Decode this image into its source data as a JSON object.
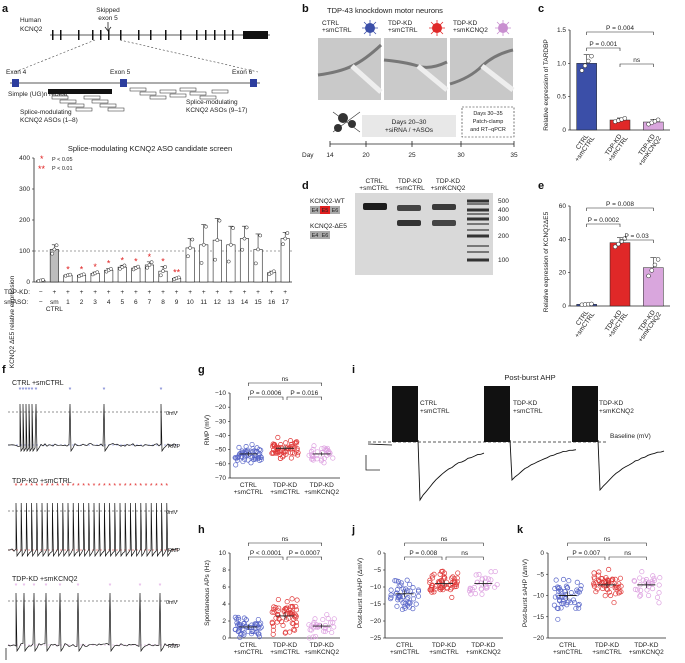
{
  "figure": {
    "panels": {
      "a": {
        "label": "a",
        "gene_label": "Human",
        "gene_name": "KCNQ2",
        "skipped_label": "Skipped",
        "skipped_exon": "exon 5",
        "exon4": "Exon 4",
        "exon5": "Exon 5",
        "exon6": "Exon 6",
        "ug_repeat": "Simple (UG)n repeat",
        "aso_left_1": "Splice-modulating",
        "aso_left_2": "KCNQ2 ASOs (1–8)",
        "aso_right_1": "Splice-modulating",
        "aso_right_2": "KCNQ2 ASOs (9–17)",
        "chart_title": "Splice-modulating KCNQ2 ASO candidate screen",
        "legend_p05": "P < 0.05",
        "legend_p01": "P < 0.01",
        "tdp_kd_label": "TDP-KD:",
        "smaso_label": "smASO:"
      },
      "b": {
        "label": "b",
        "title": "TDP-43 knockdown motor neurons",
        "cond1_l1": "CTRL",
        "cond1_l2": "+smCTRL",
        "cond2_l1": "TDP-KD",
        "cond2_l2": "+smCTRL",
        "cond3_l1": "TDP-KD",
        "cond3_l2": "+smKCNQ2",
        "timeline_box": "Days 20–30",
        "timeline_box2": "+siRNA / +ASOs",
        "end_box1": "Days 30–35",
        "end_box2": "Patch-clamp",
        "end_box3": "and RT–qPCR",
        "day_label": "Day",
        "days": [
          "14",
          "20",
          "25",
          "30",
          "35"
        ]
      },
      "c": {
        "label": "c"
      },
      "d": {
        "label": "d",
        "lane1_l1": "CTRL",
        "lane1_l2": "+smCTRL",
        "lane2_l1": "TDP-KD",
        "lane2_l2": "+smCTRL",
        "lane3_l1": "TDP-KD",
        "lane3_l2": "+smKCNQ2",
        "wt_label": "KCNQ2-WT",
        "de5_label": "KCNQ2-ΔE5",
        "e4": "E4",
        "e5": "E5",
        "e6": "E6",
        "ladder": [
          "500",
          "400",
          "300",
          "200",
          "100"
        ]
      },
      "e": {
        "label": "e"
      },
      "f": {
        "label": "f",
        "trace1": "CTRL +smCTRL",
        "trace2": "TDP-KD +smCTRL",
        "trace3": "TDP-KD +smKCNQ2",
        "zero_mv": "0mV",
        "rmp": "RMP"
      },
      "g": {
        "label": "g"
      },
      "h": {
        "label": "h"
      },
      "i": {
        "label": "i",
        "title": "Post-burst AHP",
        "c1_l1": "CTRL",
        "c1_l2": "+smCTRL",
        "c2_l1": "TDP-KD",
        "c2_l2": "+smCTRL",
        "c3_l1": "TDP-KD",
        "c3_l2": "+smKCNQ2",
        "baseline": "Baseline (mV)"
      },
      "j": {
        "label": "j"
      },
      "k": {
        "label": "k"
      }
    }
  },
  "chart_data": [
    {
      "id": "a",
      "type": "bar",
      "title": "Splice-modulating KCNQ2 ASO candidate screen",
      "ylabel": "KCNQ2 ΔE5 relative expression",
      "ylim": [
        0,
        400
      ],
      "yticks": [
        "0",
        "100",
        "200",
        "300",
        "400"
      ],
      "reference_line": 100,
      "categories": [
        "−",
        "sm CTRL",
        "1",
        "2",
        "3",
        "4",
        "5",
        "6",
        "7",
        "8",
        "9",
        "10",
        "11",
        "12",
        "13",
        "14",
        "15",
        "16",
        "17"
      ],
      "tdp_kd": [
        "−",
        "+",
        "+",
        "+",
        "+",
        "+",
        "+",
        "+",
        "+",
        "+",
        "+",
        "+",
        "+",
        "+",
        "+",
        "+",
        "+",
        "+",
        "+"
      ],
      "values": [
        5,
        105,
        22,
        22,
        28,
        38,
        48,
        45,
        55,
        35,
        12,
        110,
        120,
        135,
        120,
        140,
        105,
        30,
        140
      ],
      "errors": [
        2,
        15,
        2,
        3,
        4,
        5,
        6,
        5,
        10,
        15,
        3,
        30,
        65,
        70,
        60,
        40,
        50,
        5,
        20
      ],
      "significance": [
        "",
        "",
        "*",
        "*",
        "*",
        "*",
        "*",
        "*",
        "*",
        "*",
        "**",
        "",
        "",
        "",
        "",
        "",
        "",
        "",
        ""
      ]
    },
    {
      "id": "c",
      "type": "bar",
      "ylabel": "Relative expression of TARDBP",
      "ylim": [
        0,
        1.5
      ],
      "yticks": [
        "0",
        "0.5",
        "1.0",
        "1.5"
      ],
      "categories": [
        "CTRL +smCTRL",
        "TDP-KD +smCTRL",
        "TDP-KD +smKCNQ2"
      ],
      "values": [
        1.0,
        0.15,
        0.12
      ],
      "errors": [
        0.13,
        0.03,
        0.04
      ],
      "colors": [
        "#3b4fa8",
        "#e02828",
        "#d9a6dd"
      ],
      "brackets": [
        {
          "from": 0,
          "to": 2,
          "label": "P = 0.004"
        },
        {
          "from": 0,
          "to": 1,
          "label": "P = 0.001"
        },
        {
          "from": 1,
          "to": 2,
          "label": "ns"
        }
      ]
    },
    {
      "id": "e",
      "type": "bar",
      "ylabel": "Relative expression of KCNQ2ΔE5",
      "ylim": [
        0,
        60
      ],
      "yticks": [
        "0",
        "20",
        "40",
        "60"
      ],
      "categories": [
        "CTRL +smCTRL",
        "TDP-KD +smCTRL",
        "TDP-KD +smKCNQ2"
      ],
      "values": [
        1,
        38,
        23
      ],
      "errors": [
        0.3,
        3,
        6
      ],
      "colors": [
        "#3b4fa8",
        "#e02828",
        "#d9a6dd"
      ],
      "brackets": [
        {
          "from": 0,
          "to": 2,
          "label": "P = 0.008"
        },
        {
          "from": 0,
          "to": 1,
          "label": "P = 0.0002"
        },
        {
          "from": 1,
          "to": 2,
          "label": "P = 0.03"
        }
      ]
    },
    {
      "id": "g",
      "type": "scatter",
      "ylabel": "RMP (mV)",
      "ylim": [
        -70,
        -10
      ],
      "yticks": [
        "−10",
        "−20",
        "−30",
        "−40",
        "−50",
        "−60",
        "−70"
      ],
      "categories": [
        "CTRL +smCTRL",
        "TDP-KD +smCTRL",
        "TDP-KD +smKCNQ2"
      ],
      "means": [
        -53,
        -49,
        -53
      ],
      "spread": [
        6,
        6,
        5
      ],
      "n": [
        55,
        60,
        30
      ],
      "colors": [
        "#5865c8",
        "#e03838",
        "#dda0e0"
      ],
      "brackets": [
        {
          "from": 0,
          "to": 2,
          "label": "ns"
        },
        {
          "from": 0,
          "to": 1,
          "label": "P = 0.0006"
        },
        {
          "from": 1,
          "to": 2,
          "label": "P = 0.016"
        }
      ]
    },
    {
      "id": "h",
      "type": "scatter",
      "ylabel": "Spontaneous APs (Hz)",
      "ylim": [
        0,
        10
      ],
      "yticks": [
        "0",
        "2",
        "4",
        "6",
        "8",
        "10"
      ],
      "categories": [
        "CTRL +smCTRL",
        "TDP-KD +smCTRL",
        "TDP-KD +smKCNQ2"
      ],
      "means": [
        1.3,
        2.6,
        1.4
      ],
      "spread": [
        1.2,
        1.8,
        1.1
      ],
      "n": [
        55,
        60,
        30
      ],
      "colors": [
        "#5865c8",
        "#e03838",
        "#dda0e0"
      ],
      "brackets": [
        {
          "from": 0,
          "to": 2,
          "label": "ns"
        },
        {
          "from": 0,
          "to": 1,
          "label": "P < 0.0001"
        },
        {
          "from": 1,
          "to": 2,
          "label": "P = 0.0007"
        }
      ]
    },
    {
      "id": "j",
      "type": "scatter",
      "ylabel": "Post-burst mAHP (ΔmV)",
      "ylim": [
        -25,
        0
      ],
      "yticks": [
        "0",
        "−5",
        "−10",
        "−15",
        "−20",
        "−25"
      ],
      "categories": [
        "CTRL +smCTRL",
        "TDP-KD +smCTRL",
        "TDP-KD +smKCNQ2"
      ],
      "means": [
        -12,
        -9,
        -9
      ],
      "spread": [
        4,
        3.5,
        3.5
      ],
      "n": [
        50,
        55,
        30
      ],
      "colors": [
        "#5865c8",
        "#e03838",
        "#dda0e0"
      ],
      "brackets": [
        {
          "from": 0,
          "to": 2,
          "label": "ns"
        },
        {
          "from": 0,
          "to": 1,
          "label": "P = 0.008"
        },
        {
          "from": 1,
          "to": 2,
          "label": "ns"
        }
      ]
    },
    {
      "id": "k",
      "type": "scatter",
      "ylabel": "Post-burst sAHP (ΔmV)",
      "ylim": [
        -20,
        0
      ],
      "yticks": [
        "0",
        "−5",
        "−10",
        "−15",
        "−20"
      ],
      "categories": [
        "CTRL +smCTRL",
        "TDP-KD +smCTRL",
        "TDP-KD +smKCNQ2"
      ],
      "means": [
        -10,
        -7.5,
        -7.5
      ],
      "spread": [
        4,
        3,
        3
      ],
      "n": [
        50,
        55,
        30
      ],
      "colors": [
        "#5865c8",
        "#e03838",
        "#dda0e0"
      ],
      "brackets": [
        {
          "from": 0,
          "to": 2,
          "label": "ns"
        },
        {
          "from": 0,
          "to": 1,
          "label": "P = 0.007"
        },
        {
          "from": 1,
          "to": 2,
          "label": "ns"
        }
      ]
    }
  ]
}
